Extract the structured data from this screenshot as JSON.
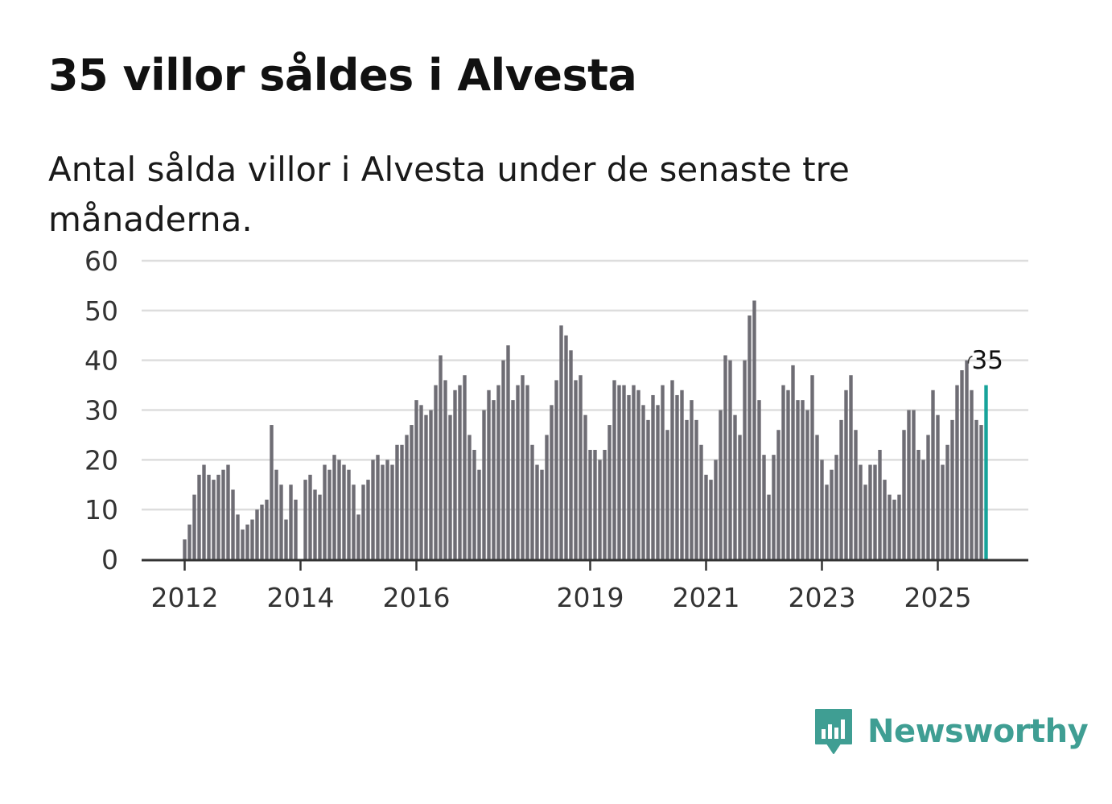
{
  "title": "35 villor såldes i Alvesta",
  "subtitle": "Antal sålda villor i Alvesta under de senaste tre månaderna.",
  "brand": {
    "name": "Newsworthy",
    "icon": "newsworthy-logo-icon",
    "color": "#3f9e93"
  },
  "colors": {
    "bar": "#6e6d74",
    "highlight": "#17a39a",
    "grid": "#dddddd",
    "axis": "#333333",
    "text": "#333333"
  },
  "chart_data": {
    "type": "bar",
    "title": "35 villor såldes i Alvesta",
    "xlabel": "",
    "ylabel": "",
    "ylim": [
      0,
      60
    ],
    "yticks": [
      0,
      10,
      20,
      30,
      40,
      50,
      60
    ],
    "xtick_labels": [
      {
        "label": "2012",
        "month": "2012-01"
      },
      {
        "label": "2014",
        "month": "2014-01"
      },
      {
        "label": "2016",
        "month": "2016-01"
      },
      {
        "label": "2019",
        "month": "2019-01"
      },
      {
        "label": "2021",
        "month": "2021-01"
      },
      {
        "label": "2023",
        "month": "2023-01"
      },
      {
        "label": "2025",
        "month": "2025-01"
      }
    ],
    "start_month": "2012-01",
    "values": [
      4,
      7,
      13,
      17,
      19,
      17,
      16,
      17,
      18,
      19,
      14,
      9,
      6,
      7,
      8,
      10,
      11,
      12,
      27,
      18,
      15,
      8,
      15,
      12,
      0,
      16,
      17,
      14,
      13,
      19,
      18,
      21,
      20,
      19,
      18,
      15,
      9,
      15,
      16,
      20,
      21,
      19,
      20,
      19,
      23,
      23,
      25,
      27,
      32,
      31,
      29,
      30,
      35,
      41,
      36,
      29,
      34,
      35,
      37,
      25,
      22,
      18,
      30,
      34,
      32,
      35,
      40,
      43,
      32,
      35,
      37,
      35,
      23,
      19,
      18,
      25,
      31,
      36,
      47,
      45,
      42,
      36,
      37,
      29,
      22,
      22,
      20,
      22,
      27,
      36,
      35,
      35,
      33,
      35,
      34,
      31,
      28,
      33,
      31,
      35,
      26,
      36,
      33,
      34,
      28,
      32,
      28,
      23,
      17,
      16,
      20,
      30,
      41,
      40,
      29,
      25,
      40,
      49,
      52,
      32,
      21,
      13,
      21,
      26,
      35,
      34,
      39,
      32,
      32,
      30,
      37,
      25,
      20,
      15,
      18,
      21,
      28,
      34,
      37,
      26,
      19,
      15,
      19,
      19,
      22,
      16,
      13,
      12,
      13,
      26,
      30,
      30,
      22,
      20,
      25,
      34,
      29,
      19,
      23,
      28,
      35,
      38,
      40,
      34,
      28,
      27,
      35
    ],
    "highlight_index": 166,
    "highlight_label": "35"
  }
}
